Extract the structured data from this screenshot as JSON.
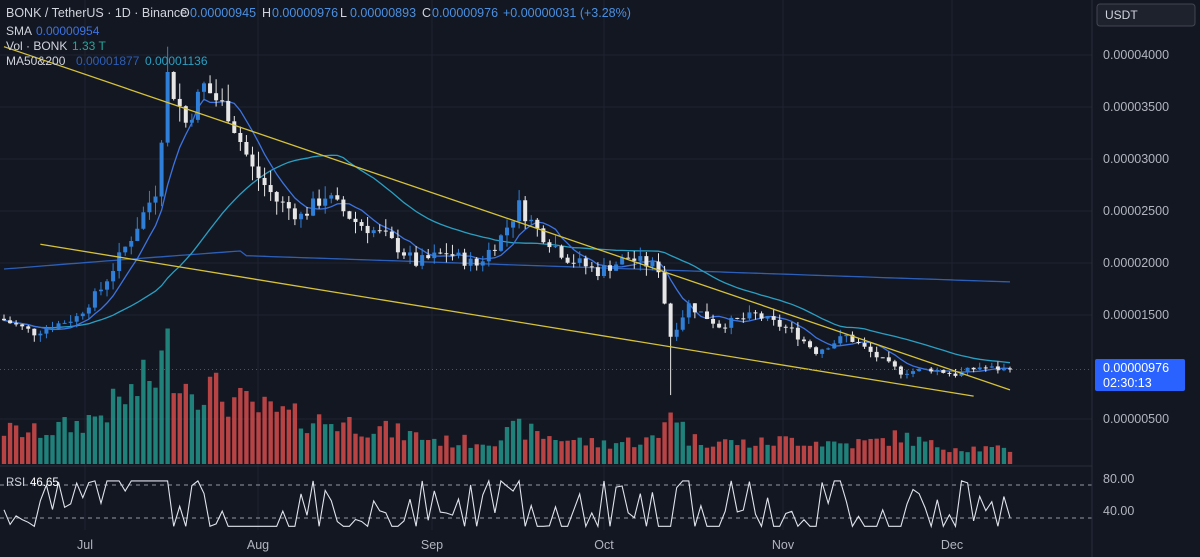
{
  "header": {
    "pair": "BONK / TetherUS · 1D · Binance",
    "o_label": "O",
    "o_value": "0.00000945",
    "h_label": "H",
    "h_value": "0.00000976",
    "l_label": "L",
    "l_value": "0.00000893",
    "c_label": "C",
    "c_value": "0.00000976",
    "change": "+0.00000031 (+3.28%)"
  },
  "indicators": {
    "sma_label": "SMA",
    "sma_value": "0.00000954",
    "vol_label": "Vol · BONK",
    "vol_value": "1.33 T",
    "ma_label": "MA50&200",
    "ma50_value": "0.00001877",
    "ma200_value": "0.00001136"
  },
  "currency_badge": "USDT",
  "price_badge": {
    "price": "0.00000976",
    "countdown": "02:30:13"
  },
  "rsi": {
    "label": "RSI",
    "value": "46.65",
    "upper": "80.00",
    "lower": "40.00"
  },
  "colors": {
    "background": "#131722",
    "up": "#26a69a",
    "down": "#ef5350",
    "candle_up": "#2f7fd8",
    "candle_down": "#e6e6e6",
    "sma": "#3d73e0",
    "ma50": "#2a9fc2",
    "ma200": "#2d5fb8",
    "trendline": "#d6c23a",
    "price_badge": "#2962ff"
  },
  "chart_data": {
    "type": "candlestick",
    "title": "BONK / TetherUS · 1D · Binance",
    "y_unit": "USDT",
    "y_ticks": [
      "0.00004000",
      "0.00003500",
      "0.00003000",
      "0.00002500",
      "0.00002000",
      "0.00001500",
      "0.00000500"
    ],
    "x_ticks": [
      "Jul",
      "Aug",
      "Sep",
      "Oct",
      "Nov",
      "Dec"
    ],
    "ylim": [
      2.5e-06,
      4.35e-05
    ],
    "series": [
      {
        "name": "SMA",
        "last": 9.54e-06
      },
      {
        "name": "MA50",
        "last": 1.877e-05
      },
      {
        "name": "MA200",
        "last": 1.136e-05
      }
    ],
    "trendlines": [
      {
        "from": [
          0,
          4.08e-05
        ],
        "to": [
          166,
          7.8e-06
        ]
      },
      {
        "from": [
          6,
          2.18e-05
        ],
        "to": [
          160,
          7.2e-06
        ]
      }
    ],
    "rsi": {
      "last": 46.65,
      "bands": [
        80,
        40
      ]
    },
    "anchors": [
      {
        "x": 0,
        "close": 1.45e-05,
        "vol": 0.3
      },
      {
        "x": 5,
        "close": 1.33e-05,
        "vol": 0.28
      },
      {
        "x": 12,
        "close": 1.48e-05,
        "vol": 0.35
      },
      {
        "x": 16,
        "close": 1.75e-05,
        "vol": 0.45
      },
      {
        "x": 21,
        "close": 2.25e-05,
        "vol": 0.62
      },
      {
        "x": 25,
        "close": 2.7e-05,
        "vol": 0.8
      },
      {
        "x": 27,
        "close": 3.8e-05,
        "vol": 1.0
      },
      {
        "x": 30,
        "close": 3.35e-05,
        "vol": 0.72
      },
      {
        "x": 33,
        "close": 3.7e-05,
        "vol": 0.7
      },
      {
        "x": 37,
        "close": 3.45e-05,
        "vol": 0.58
      },
      {
        "x": 41,
        "close": 2.9e-05,
        "vol": 0.5
      },
      {
        "x": 45,
        "close": 2.6e-05,
        "vol": 0.45
      },
      {
        "x": 49,
        "close": 2.45e-05,
        "vol": 0.4
      },
      {
        "x": 53,
        "close": 2.65e-05,
        "vol": 0.38
      },
      {
        "x": 58,
        "close": 2.4e-05,
        "vol": 0.36
      },
      {
        "x": 63,
        "close": 2.25e-05,
        "vol": 0.3
      },
      {
        "x": 68,
        "close": 2e-05,
        "vol": 0.25
      },
      {
        "x": 73,
        "close": 2.1e-05,
        "vol": 0.2
      },
      {
        "x": 78,
        "close": 1.98e-05,
        "vol": 0.2
      },
      {
        "x": 82,
        "close": 2.25e-05,
        "vol": 0.24
      },
      {
        "x": 85,
        "close": 2.55e-05,
        "vol": 0.32
      },
      {
        "x": 88,
        "close": 2.32e-05,
        "vol": 0.26
      },
      {
        "x": 93,
        "close": 2.05e-05,
        "vol": 0.22
      },
      {
        "x": 98,
        "close": 1.92e-05,
        "vol": 0.18
      },
      {
        "x": 103,
        "close": 2.05e-05,
        "vol": 0.2
      },
      {
        "x": 108,
        "close": 1.95e-05,
        "vol": 0.22
      },
      {
        "x": 110,
        "close": 1.3e-05,
        "vol": 0.55
      },
      {
        "x": 113,
        "close": 1.6e-05,
        "vol": 0.22
      },
      {
        "x": 118,
        "close": 1.4e-05,
        "vol": 0.2
      },
      {
        "x": 124,
        "close": 1.5e-05,
        "vol": 0.18
      },
      {
        "x": 130,
        "close": 1.35e-05,
        "vol": 0.22
      },
      {
        "x": 134,
        "close": 1.15e-05,
        "vol": 0.2
      },
      {
        "x": 139,
        "close": 1.3e-05,
        "vol": 0.18
      },
      {
        "x": 144,
        "close": 1.1e-05,
        "vol": 0.2
      },
      {
        "x": 148,
        "close": 9.5e-06,
        "vol": 0.25
      },
      {
        "x": 153,
        "close": 9.8e-06,
        "vol": 0.17
      },
      {
        "x": 157,
        "close": 9.3e-06,
        "vol": 0.15
      },
      {
        "x": 161,
        "close": 1e-05,
        "vol": 0.14
      },
      {
        "x": 166,
        "close": 9.7e-06,
        "vol": 0.12
      }
    ]
  }
}
